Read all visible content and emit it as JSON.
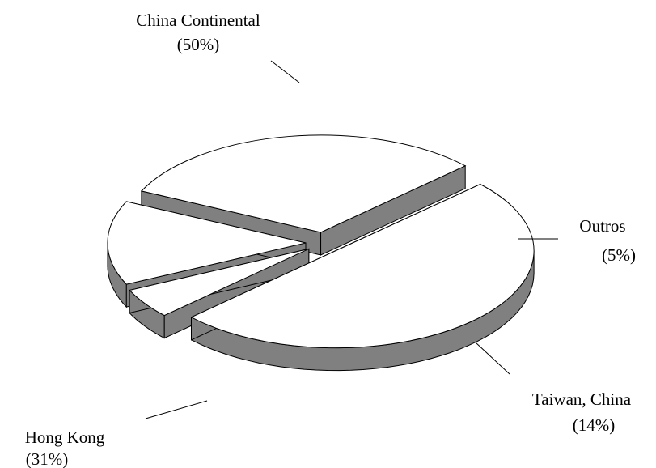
{
  "chart_data": {
    "type": "pie",
    "style": "3d-exploded",
    "slices": [
      {
        "name": "China Continental",
        "percent_label": "(50%)",
        "value": 50
      },
      {
        "name": "Outros",
        "percent_label": "(5%)",
        "value": 5
      },
      {
        "name": "Taiwan, China",
        "percent_label": "(14%)",
        "value": 14
      },
      {
        "name": "Hong Kong",
        "percent_label": "(31%)",
        "value": 31
      }
    ],
    "colors": {
      "top_face": "#ffffff",
      "side_face": "#808080",
      "outline": "#000000"
    }
  }
}
